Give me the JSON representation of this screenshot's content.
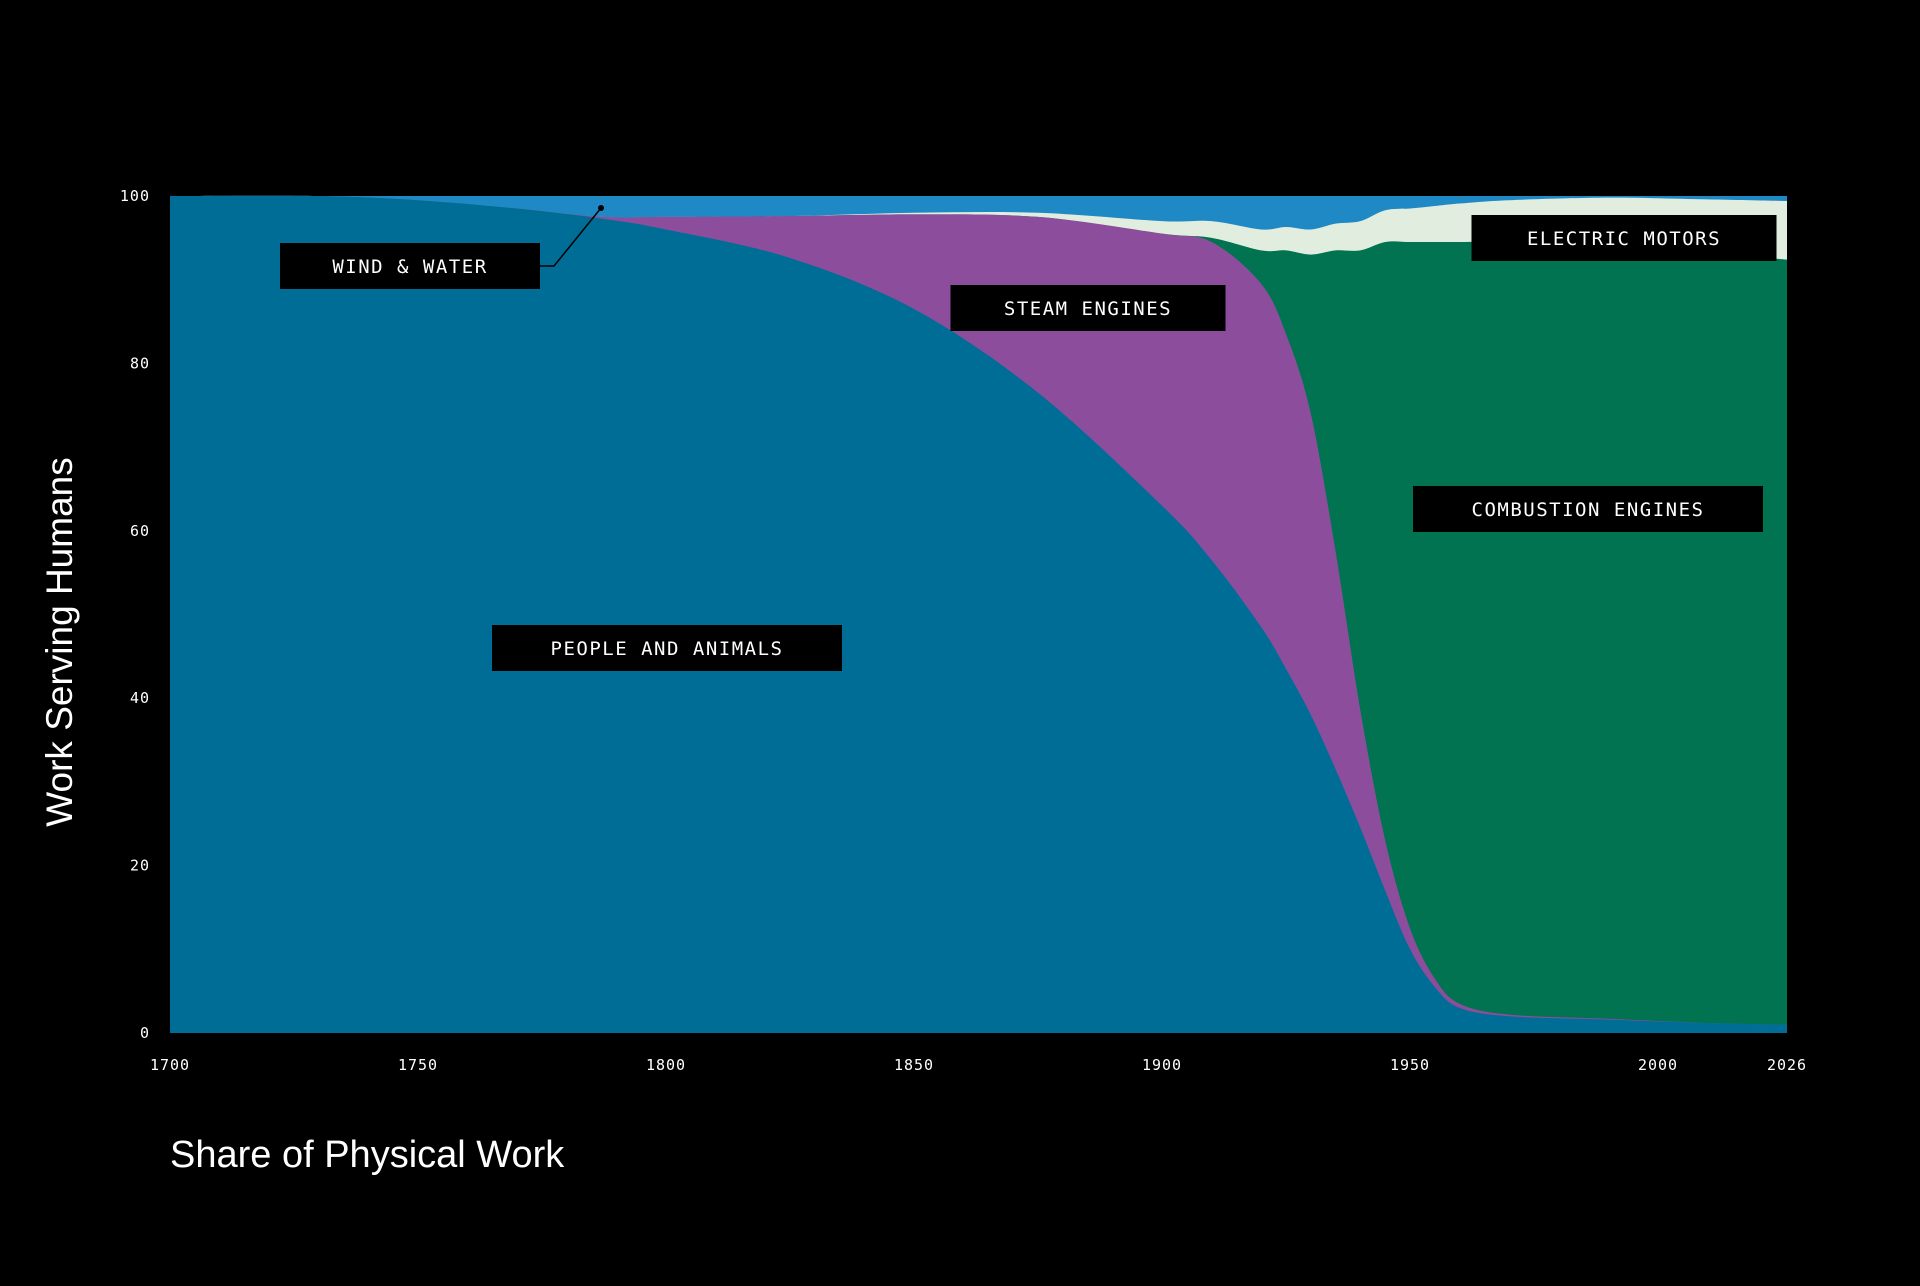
{
  "chart_data": {
    "type": "area",
    "stacked": true,
    "normalized_to": 100,
    "title": "",
    "xlabel": "Share of Physical Work",
    "ylabel": "Work Serving Humans",
    "xlim": [
      1700,
      2026
    ],
    "ylim": [
      0,
      100
    ],
    "x_ticks": [
      1700,
      1750,
      1800,
      1850,
      1900,
      1950,
      2000,
      2026
    ],
    "y_ticks": [
      0,
      20,
      40,
      60,
      80,
      100
    ],
    "grid": false,
    "x": [
      1700,
      1730,
      1750,
      1770,
      1787,
      1800,
      1825,
      1850,
      1875,
      1900,
      1910,
      1920,
      1925,
      1930,
      1935,
      1940,
      1945,
      1950,
      1955,
      1960,
      1970,
      1990,
      2010,
      2026
    ],
    "series": [
      {
        "name": "PEOPLE AND ANIMALS",
        "color": "#006D96",
        "values": [
          100,
          100,
          99.5,
          98.5,
          97.3,
          96.0,
          92.6,
          86.5,
          76.5,
          63.0,
          56.5,
          48.5,
          43.5,
          38.0,
          31.5,
          24.5,
          17.0,
          10.0,
          5.5,
          3.0,
          2.0,
          1.6,
          1.2,
          1.0
        ]
      },
      {
        "name": "STEAM ENGINES",
        "color": "#8C4D9C",
        "values": [
          0,
          0,
          0,
          0,
          0.2,
          1.5,
          5.0,
          11.3,
          21.0,
          32.5,
          38.0,
          41.0,
          40.0,
          36.0,
          26.0,
          14.0,
          6.0,
          2.5,
          1.0,
          0.5,
          0.2,
          0.1,
          0,
          0
        ]
      },
      {
        "name": "COMBUSTION ENGINES",
        "color": "#017350",
        "values": [
          0,
          0,
          0,
          0,
          0,
          0,
          0,
          0,
          0,
          0,
          0.5,
          4.0,
          10.0,
          19.0,
          36.0,
          55.0,
          71.5,
          82.0,
          88.0,
          91.0,
          92.3,
          92.4,
          92.0,
          91.4
        ]
      },
      {
        "name": "ELECTRIC MOTORS",
        "color": "#E1EDDE",
        "values": [
          0,
          0,
          0,
          0,
          0,
          0,
          0,
          0.2,
          0.5,
          1.5,
          2.0,
          2.5,
          2.8,
          3.0,
          3.2,
          3.5,
          3.8,
          4.0,
          4.3,
          4.6,
          5.0,
          5.7,
          6.4,
          7.0
        ]
      },
      {
        "name": "WIND & WATER",
        "color": "#1F89C6",
        "values": [
          0,
          0,
          0.5,
          1.5,
          2.5,
          2.5,
          2.4,
          2.0,
          2.0,
          3.0,
          3.0,
          4.0,
          3.7,
          4.0,
          3.3,
          3.0,
          1.7,
          1.5,
          1.2,
          0.9,
          0.5,
          0.2,
          0.4,
          0.6
        ]
      }
    ],
    "annotations": [
      {
        "text": "WIND & WATER",
        "series": "WIND & WATER",
        "leader_line": true
      },
      {
        "text": "STEAM ENGINES",
        "series": "STEAM ENGINES"
      },
      {
        "text": "ELECTRIC MOTORS",
        "series": "ELECTRIC MOTORS"
      },
      {
        "text": "COMBUSTION ENGINES",
        "series": "COMBUSTION ENGINES"
      },
      {
        "text": "PEOPLE AND ANIMALS",
        "series": "PEOPLE AND ANIMALS"
      }
    ],
    "colors": {
      "background": "#000000",
      "text": "#FFFFFF",
      "label_box": "#000000"
    }
  }
}
